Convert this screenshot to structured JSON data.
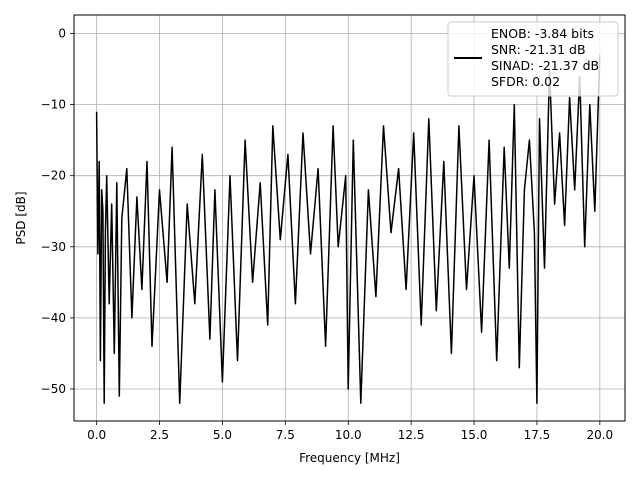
{
  "chart_data": {
    "type": "line",
    "xlabel": "Frequency [MHz]",
    "ylabel": "PSD [dB]",
    "xlim": [
      -0.9,
      21.0
    ],
    "ylim": [
      -54.5,
      2.6
    ],
    "xticks": [
      0.0,
      2.5,
      5.0,
      7.5,
      10.0,
      12.5,
      15.0,
      17.5,
      20.0
    ],
    "xtick_labels": [
      "0.0",
      "2.5",
      "5.0",
      "7.5",
      "10.0",
      "12.5",
      "15.0",
      "17.5",
      "20.0"
    ],
    "yticks": [
      0,
      -10,
      -20,
      -30,
      -40,
      -50
    ],
    "ytick_labels": [
      "0",
      "−10",
      "−20",
      "−30",
      "−40",
      "−50"
    ],
    "grid": true,
    "legend_position": "top-right",
    "series": [
      {
        "name": "ENOB: -3.84 bits\nSNR: -21.31 dB\nSINAD: -21.37 dB\nSFDR: 0.02",
        "color": "#000000",
        "x": [
          0.0,
          0.05,
          0.1,
          0.15,
          0.2,
          0.25,
          0.3,
          0.35,
          0.4,
          0.5,
          0.6,
          0.7,
          0.8,
          0.9,
          1.0,
          1.2,
          1.4,
          1.6,
          1.8,
          2.0,
          2.2,
          2.5,
          2.8,
          3.0,
          3.3,
          3.6,
          3.9,
          4.2,
          4.5,
          4.7,
          5.0,
          5.3,
          5.6,
          5.9,
          6.2,
          6.5,
          6.8,
          7.0,
          7.3,
          7.6,
          7.9,
          8.2,
          8.5,
          8.8,
          9.1,
          9.4,
          9.6,
          9.9,
          10.0,
          10.2,
          10.5,
          10.8,
          11.1,
          11.4,
          11.7,
          12.0,
          12.3,
          12.6,
          12.9,
          13.2,
          13.5,
          13.8,
          14.1,
          14.4,
          14.7,
          15.0,
          15.3,
          15.6,
          15.9,
          16.2,
          16.4,
          16.6,
          16.8,
          17.0,
          17.2,
          17.4,
          17.5,
          17.6,
          17.8,
          18.0,
          18.2,
          18.4,
          18.6,
          18.8,
          19.0,
          19.2,
          19.4,
          19.6,
          19.8,
          20.0
        ],
        "y": [
          -11,
          -31,
          -18,
          -46,
          -22,
          -25,
          -52,
          -28,
          -20,
          -38,
          -24,
          -45,
          -21,
          -51,
          -26,
          -19,
          -40,
          -23,
          -36,
          -18,
          -44,
          -22,
          -35,
          -16,
          -52,
          -24,
          -38,
          -17,
          -43,
          -22,
          -49,
          -20,
          -46,
          -15,
          -35,
          -21,
          -41,
          -13,
          -29,
          -17,
          -38,
          -14,
          -31,
          -19,
          -44,
          -13,
          -30,
          -20,
          -50,
          -15,
          -52,
          -22,
          -37,
          -13,
          -28,
          -19,
          -36,
          -14,
          -41,
          -12,
          -39,
          -18,
          -45,
          -13,
          -36,
          -20,
          -42,
          -15,
          -46,
          -16,
          -33,
          -10,
          -47,
          -22,
          -15,
          -28,
          -52,
          -12,
          -33,
          -5,
          -24,
          -14,
          -27,
          -9,
          -22,
          -6,
          -30,
          -10,
          -25,
          -3
        ]
      }
    ]
  }
}
